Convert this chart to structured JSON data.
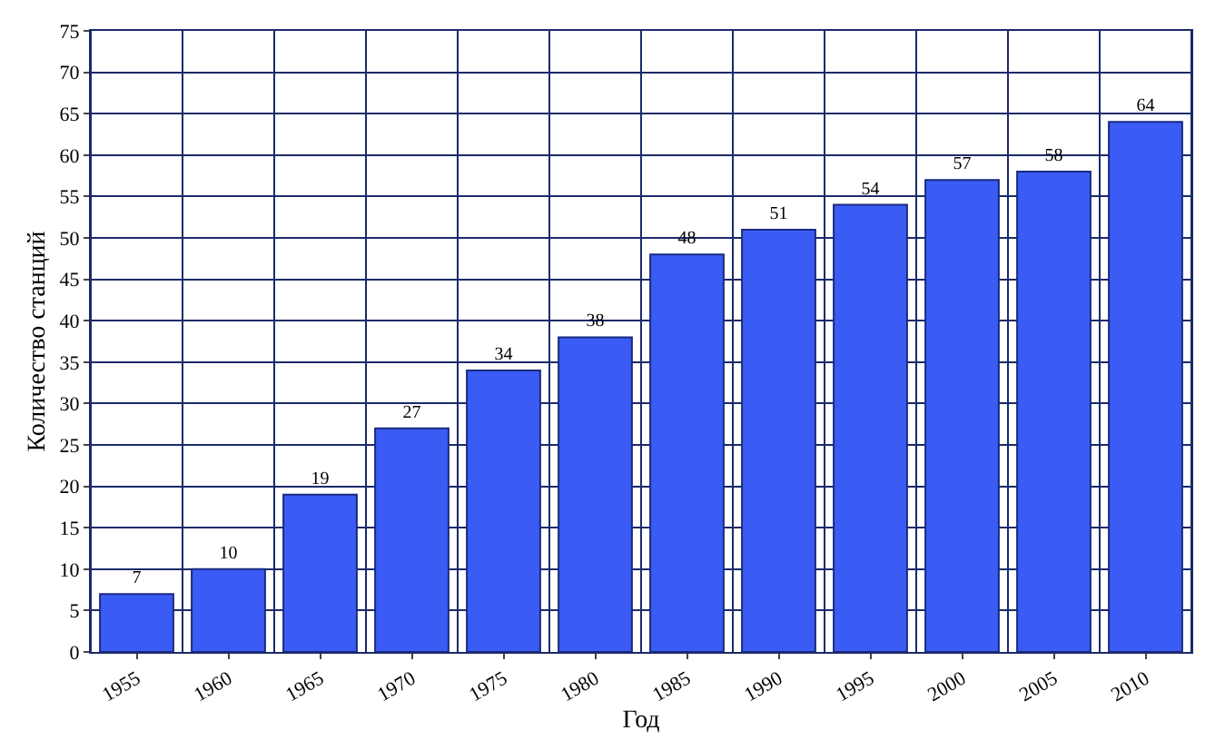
{
  "chart_data": {
    "type": "bar",
    "xlabel": "Год",
    "ylabel": "Количество станций",
    "categories": [
      "1955",
      "1960",
      "1965",
      "1970",
      "1975",
      "1980",
      "1985",
      "1990",
      "1995",
      "2000",
      "2005",
      "2010"
    ],
    "values": [
      7,
      10,
      19,
      27,
      34,
      38,
      48,
      51,
      54,
      57,
      58,
      64
    ],
    "color": "#3a5cf5",
    "ylim": [
      0,
      75
    ],
    "yticks": [
      0,
      5,
      10,
      15,
      20,
      25,
      30,
      35,
      40,
      45,
      50,
      55,
      60,
      65,
      70,
      75
    ],
    "grid": true,
    "data_labels": true
  }
}
